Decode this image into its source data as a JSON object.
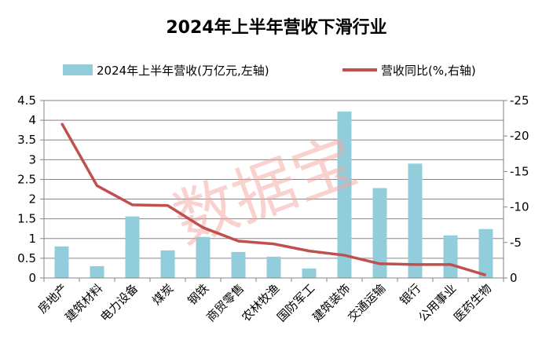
{
  "chart_data": {
    "type": "bar+line",
    "title": "2024年上半年营收下滑行业",
    "categories": [
      "房地产",
      "建筑材料",
      "电力设备",
      "煤炭",
      "钢铁",
      "商贸零售",
      "农林牧渔",
      "国防军工",
      "建筑装饰",
      "交通运输",
      "银行",
      "公用事业",
      "医药生物"
    ],
    "series": [
      {
        "name": "2024年上半年营收(万亿元,左轴)",
        "type": "bar",
        "axis": "left",
        "color": "#92CDDC",
        "values": [
          0.8,
          0.3,
          1.56,
          0.7,
          1.04,
          0.66,
          0.54,
          0.24,
          4.22,
          2.28,
          2.9,
          1.08,
          1.24
        ]
      },
      {
        "name": "营收同比(%,右轴)",
        "type": "line",
        "axis": "right",
        "color": "#C0504D",
        "values": [
          -21.8,
          -13.0,
          -10.3,
          -10.2,
          -7.1,
          -5.2,
          -4.8,
          -3.8,
          -3.2,
          -2.0,
          -1.9,
          -1.9,
          -0.4
        ]
      }
    ],
    "left_axis": {
      "ylim": [
        0,
        4.5
      ],
      "ticks": [
        "0",
        "0.5",
        "1",
        "1.5",
        "2",
        "2.5",
        "3",
        "3.5",
        "4",
        "4.5"
      ]
    },
    "right_axis": {
      "ylim": [
        0,
        -25
      ],
      "reversed": true,
      "ticks": [
        "0",
        "-5",
        "-10",
        "-15",
        "-20",
        "-25"
      ]
    },
    "grid": true,
    "legend": "top",
    "watermark": "数据宝"
  }
}
